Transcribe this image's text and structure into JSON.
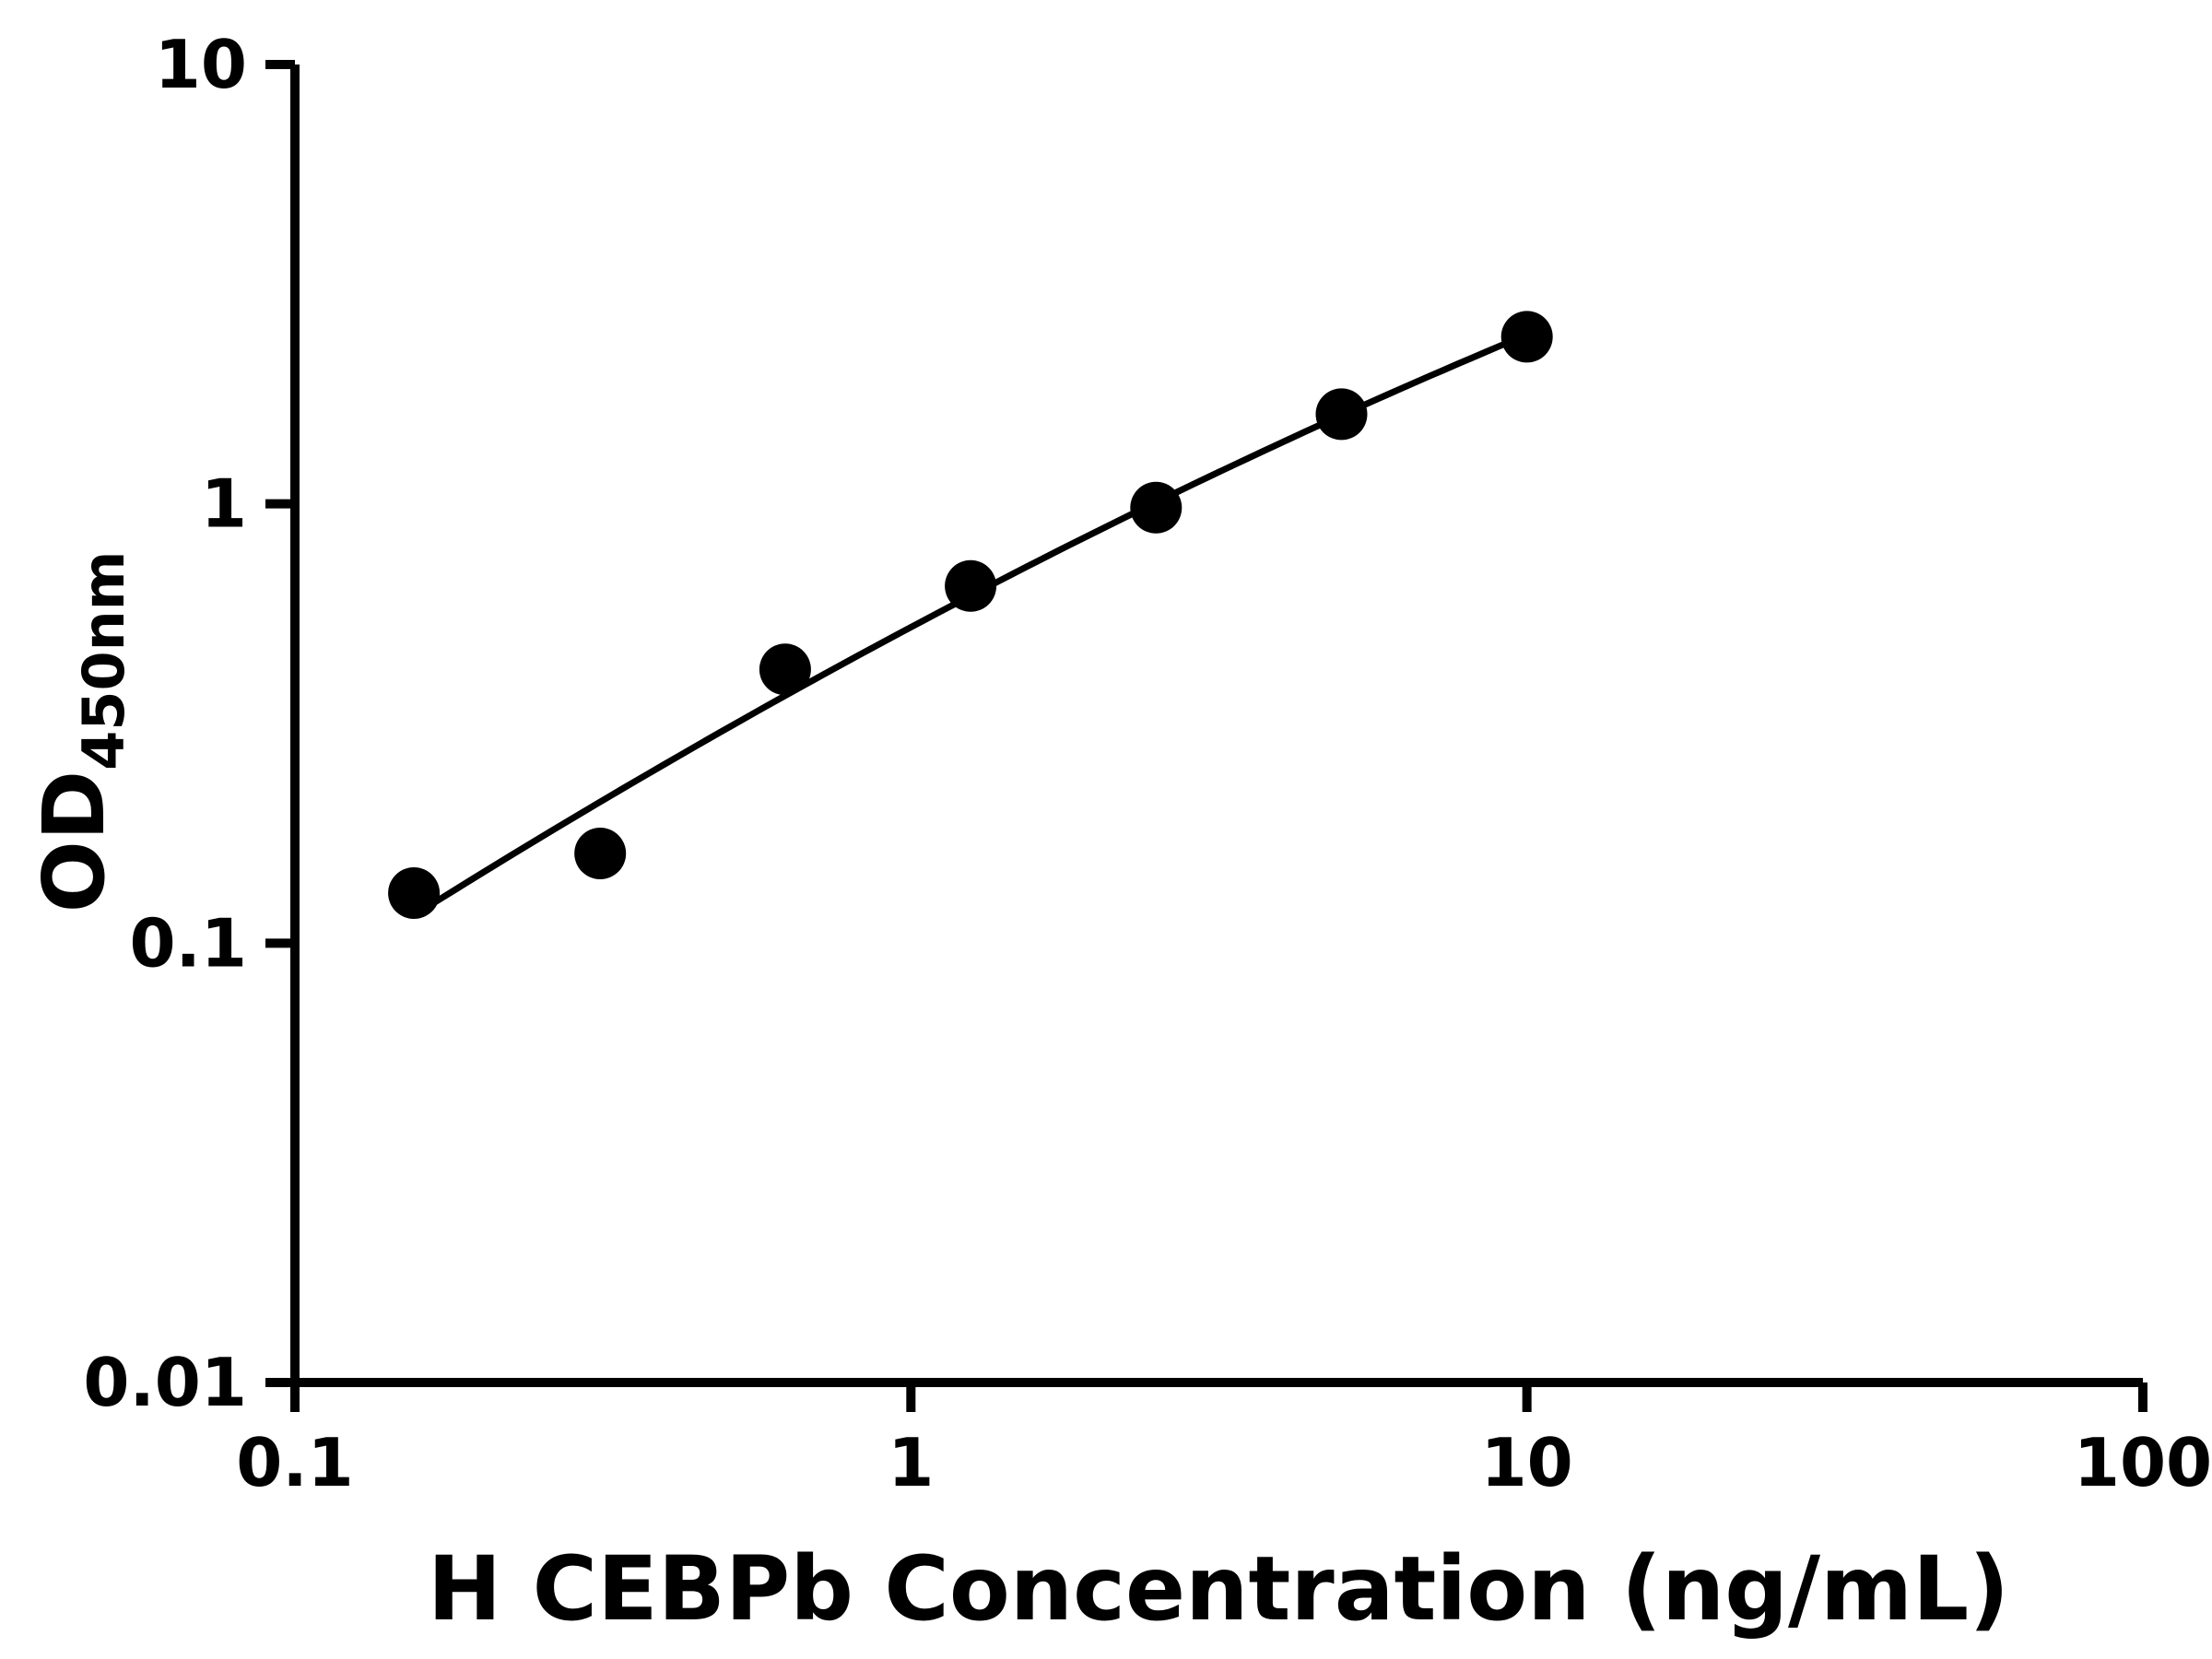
{
  "colors": {
    "ink": "#000000",
    "background": "#ffffff"
  },
  "chart_data": {
    "type": "scatter",
    "title": "",
    "xlabel": "H CEBPb Concentration (ng/mL)",
    "ylabel_main": "OD",
    "ylabel_sub": "450nm",
    "x_scale": "log",
    "y_scale": "log",
    "xlim": [
      0.1,
      100
    ],
    "ylim": [
      0.01,
      10
    ],
    "grid": false,
    "legend": "none",
    "x_ticks": [
      {
        "value": 0.1,
        "label": "0.1"
      },
      {
        "value": 1,
        "label": "1"
      },
      {
        "value": 10,
        "label": "10"
      },
      {
        "value": 100,
        "label": "100"
      }
    ],
    "y_ticks": [
      {
        "value": 0.01,
        "label": "0.01"
      },
      {
        "value": 0.1,
        "label": "0.1"
      },
      {
        "value": 1,
        "label": "1"
      },
      {
        "value": 10,
        "label": "10"
      }
    ],
    "series": [
      {
        "name": "standard-curve-points",
        "marker": "filled-circle",
        "color": "#000000",
        "x": [
          0.156,
          0.313,
          0.625,
          1.25,
          2.5,
          5,
          10
        ],
        "y": [
          0.13,
          0.16,
          0.42,
          0.65,
          0.98,
          1.6,
          2.4
        ]
      }
    ],
    "trendline": {
      "type": "quadratic-loglog-fit",
      "color": "#000000"
    }
  }
}
